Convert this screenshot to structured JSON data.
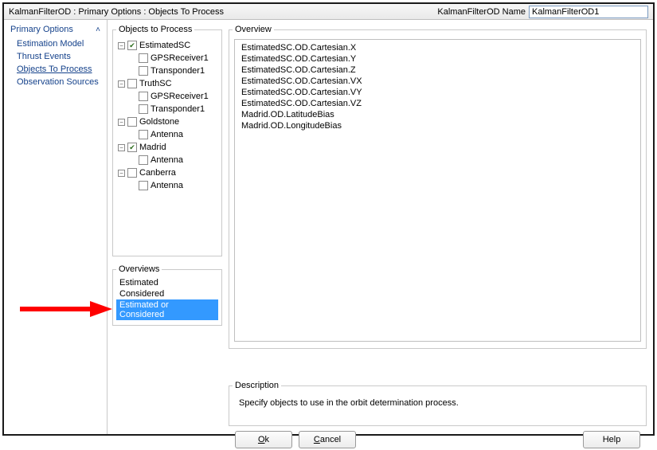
{
  "titlebar": {
    "title": "KalmanFilterOD : Primary Options : Objects To Process",
    "name_label": "KalmanFilterOD Name",
    "name_value": "KalmanFilterOD1"
  },
  "nav": {
    "header": "Primary Options",
    "items": [
      {
        "label": "Estimation Model",
        "selected": false
      },
      {
        "label": "Thrust Events",
        "selected": false
      },
      {
        "label": "Objects To Process",
        "selected": true
      },
      {
        "label": "Observation Sources",
        "selected": false
      }
    ]
  },
  "objects_panel": {
    "legend": "Objects to Process",
    "tree": [
      {
        "label": "EstimatedSC",
        "checked": true,
        "expanded": true,
        "children": [
          {
            "label": "GPSReceiver1",
            "checked": false
          },
          {
            "label": "Transponder1",
            "checked": false
          }
        ]
      },
      {
        "label": "TruthSC",
        "checked": false,
        "expanded": true,
        "children": [
          {
            "label": "GPSReceiver1",
            "checked": false
          },
          {
            "label": "Transponder1",
            "checked": false
          }
        ]
      },
      {
        "label": "Goldstone",
        "checked": false,
        "expanded": true,
        "children": [
          {
            "label": "Antenna",
            "checked": false
          }
        ]
      },
      {
        "label": "Madrid",
        "checked": true,
        "expanded": true,
        "children": [
          {
            "label": "Antenna",
            "checked": false
          }
        ]
      },
      {
        "label": "Canberra",
        "checked": false,
        "expanded": true,
        "children": [
          {
            "label": "Antenna",
            "checked": false
          }
        ]
      }
    ]
  },
  "overviews_panel": {
    "legend": "Overviews",
    "items": [
      {
        "label": "Estimated",
        "selected": false
      },
      {
        "label": "Considered",
        "selected": false
      },
      {
        "label": "Estimated or Considered",
        "selected": true
      }
    ]
  },
  "overview_panel": {
    "legend": "Overview",
    "lines": [
      "EstimatedSC.OD.Cartesian.X",
      "EstimatedSC.OD.Cartesian.Y",
      "EstimatedSC.OD.Cartesian.Z",
      "EstimatedSC.OD.Cartesian.VX",
      "EstimatedSC.OD.Cartesian.VY",
      "EstimatedSC.OD.Cartesian.VZ",
      "Madrid.OD.LatitudeBias",
      "Madrid.OD.LongitudeBias"
    ]
  },
  "description_panel": {
    "legend": "Description",
    "text": "Specify objects to use in the orbit determination process."
  },
  "buttons": {
    "ok_prefix": "O",
    "ok_rest": "k",
    "cancel_prefix": "C",
    "cancel_rest": "ancel",
    "help": "Help"
  },
  "colors": {
    "selection_bg": "#3399ff",
    "link": "#15428b",
    "border": "#c9c9c9",
    "arrow": "#ff0000"
  }
}
